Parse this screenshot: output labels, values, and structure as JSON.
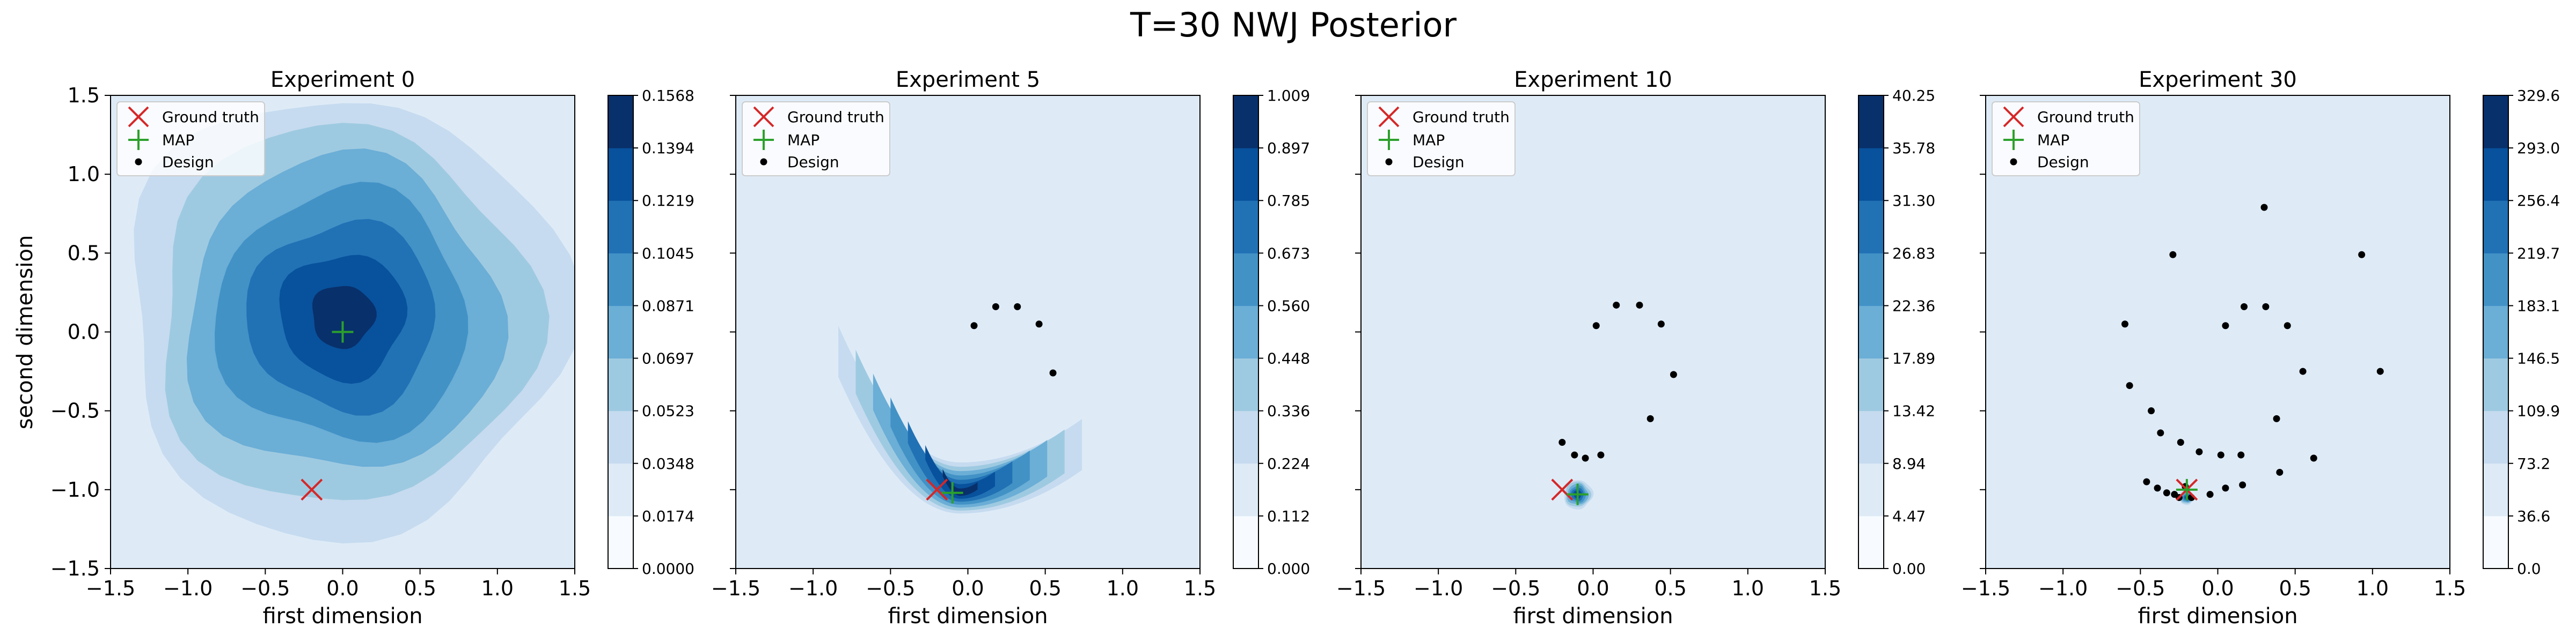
{
  "suptitle": "T=30 NWJ Posterior",
  "xlabel": "first dimension",
  "ylabel": "second dimension",
  "legend_labels": {
    "truth": "Ground truth",
    "map": "MAP",
    "design": "Design"
  },
  "colors": {
    "truth": "#d62728",
    "map": "#2ca02c",
    "design": "#000000",
    "colormap": [
      "#f7fbff",
      "#deebf7",
      "#c6dbef",
      "#9ecae1",
      "#6baed6",
      "#4292c6",
      "#2171b5",
      "#08519c",
      "#08306b"
    ]
  },
  "ticks": {
    "x": [
      "−1.5",
      "−1.0",
      "−0.5",
      "0.0",
      "0.5",
      "1.0",
      "1.5"
    ],
    "y": [
      "1.5",
      "1.0",
      "0.5",
      "0.0",
      "−0.5",
      "−1.0",
      "−1.5"
    ]
  },
  "chart_data": [
    {
      "type": "contour",
      "title": "Experiment 0",
      "xlim": [
        -1.5,
        1.5
      ],
      "ylim": [
        -1.5,
        1.5
      ],
      "ground_truth": [
        -0.2,
        -1.0
      ],
      "map": [
        0.0,
        0.0
      ],
      "designs": [],
      "colorbar": [
        "0.0000",
        "0.0174",
        "0.0348",
        "0.0523",
        "0.0697",
        "0.0871",
        "0.1045",
        "0.1219",
        "0.1394",
        "0.1568"
      ],
      "density": {
        "shape": "blob",
        "center": [
          0.0,
          0.1
        ],
        "spread": 1.05
      }
    },
    {
      "type": "contour",
      "title": "Experiment 5",
      "xlim": [
        -1.5,
        1.5
      ],
      "ylim": [
        -1.5,
        1.5
      ],
      "ground_truth": [
        -0.2,
        -1.0
      ],
      "map": [
        -0.1,
        -1.02
      ],
      "designs": [
        [
          0.04,
          0.04
        ],
        [
          0.18,
          0.16
        ],
        [
          0.32,
          0.16
        ],
        [
          0.46,
          0.05
        ],
        [
          0.55,
          -0.26
        ]
      ],
      "colorbar": [
        "0.000",
        "0.112",
        "0.224",
        "0.336",
        "0.448",
        "0.560",
        "0.673",
        "0.785",
        "0.897",
        "1.009"
      ],
      "density": {
        "shape": "banana",
        "center": [
          0.0,
          -1.05
        ]
      }
    },
    {
      "type": "contour",
      "title": "Experiment 10",
      "xlim": [
        -1.5,
        1.5
      ],
      "ylim": [
        -1.5,
        1.5
      ],
      "ground_truth": [
        -0.2,
        -1.0
      ],
      "map": [
        -0.1,
        -1.03
      ],
      "designs": [
        [
          -0.2,
          -0.7
        ],
        [
          -0.12,
          -0.78
        ],
        [
          -0.05,
          -0.8
        ],
        [
          0.05,
          -0.78
        ],
        [
          0.15,
          0.17
        ],
        [
          0.3,
          0.17
        ],
        [
          0.44,
          0.05
        ],
        [
          0.52,
          -0.27
        ],
        [
          0.37,
          -0.55
        ],
        [
          0.02,
          0.04
        ]
      ],
      "colorbar": [
        "0.00",
        "4.47",
        "8.94",
        "13.42",
        "17.89",
        "22.36",
        "26.83",
        "31.30",
        "35.78",
        "40.25"
      ],
      "density": {
        "shape": "blob",
        "center": [
          -0.1,
          -1.03
        ],
        "spread": 0.07
      }
    },
    {
      "type": "contour",
      "title": "Experiment 30",
      "xlim": [
        -1.5,
        1.5
      ],
      "ylim": [
        -1.5,
        1.5
      ],
      "ground_truth": [
        -0.2,
        -1.0
      ],
      "map": [
        -0.2,
        -1.0
      ],
      "designs": [
        [
          0.3,
          0.79
        ],
        [
          -0.29,
          0.49
        ],
        [
          0.93,
          0.49
        ],
        [
          0.17,
          0.16
        ],
        [
          0.31,
          0.16
        ],
        [
          -0.6,
          0.05
        ],
        [
          0.05,
          0.04
        ],
        [
          0.45,
          0.04
        ],
        [
          -0.57,
          -0.34
        ],
        [
          0.55,
          -0.25
        ],
        [
          1.05,
          -0.25
        ],
        [
          -0.43,
          -0.5
        ],
        [
          0.38,
          -0.55
        ],
        [
          -0.37,
          -0.64
        ],
        [
          -0.24,
          -0.7
        ],
        [
          -0.12,
          -0.76
        ],
        [
          0.02,
          -0.78
        ],
        [
          0.15,
          -0.78
        ],
        [
          0.62,
          -0.8
        ],
        [
          0.4,
          -0.89
        ],
        [
          -0.46,
          -0.95
        ],
        [
          -0.39,
          -0.99
        ],
        [
          -0.33,
          -1.02
        ],
        [
          -0.28,
          -1.03
        ],
        [
          -0.25,
          -1.05
        ],
        [
          -0.17,
          -1.05
        ],
        [
          -0.05,
          -1.03
        ],
        [
          0.05,
          -0.99
        ],
        [
          0.16,
          -0.97
        ],
        [
          -0.21,
          -0.98
        ]
      ],
      "colorbar": [
        "0.0",
        "36.6",
        "73.2",
        "109.9",
        "146.5",
        "183.1",
        "219.7",
        "256.4",
        "293.0",
        "329.6"
      ],
      "density": {
        "shape": "blob",
        "center": [
          -0.2,
          -1.05
        ],
        "spread": 0.035
      }
    }
  ]
}
